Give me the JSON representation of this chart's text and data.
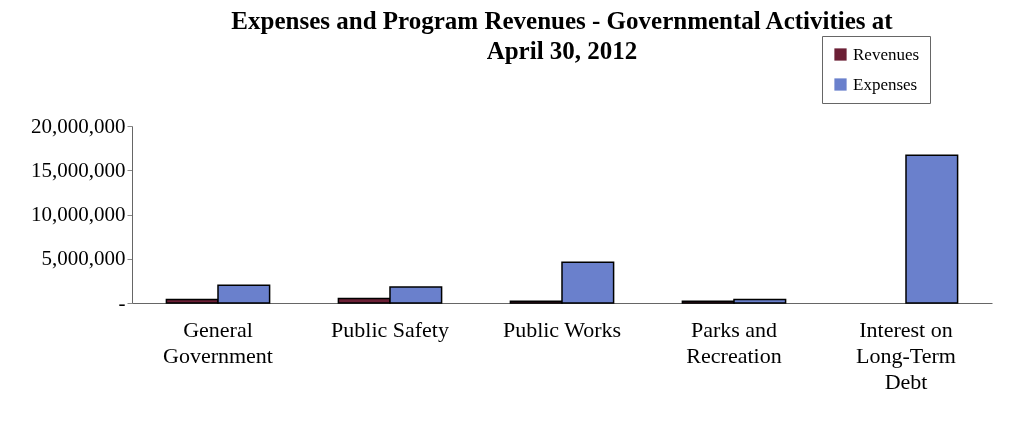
{
  "chart_data": {
    "type": "bar",
    "title": "Expenses and Program Revenues - Governmental Activities at April 30, 2012",
    "categories": [
      "General Government",
      "Public Safety",
      "Public Works",
      "Parks and Recreation",
      "Interest on Long-Term Debt"
    ],
    "series": [
      {
        "name": "Revenues",
        "color": "#6b1f35",
        "values": [
          400000,
          500000,
          200000,
          200000,
          0
        ]
      },
      {
        "name": "Expenses",
        "color": "#6a80cc",
        "values": [
          2000000,
          1800000,
          4600000,
          400000,
          16700000
        ]
      }
    ],
    "ylim": [
      0,
      20000000
    ],
    "yticks": [
      {
        "value": 0,
        "label": "-"
      },
      {
        "value": 5000000,
        "label": "5,000,000"
      },
      {
        "value": 10000000,
        "label": "10,000,000"
      },
      {
        "value": 15000000,
        "label": "15,000,000"
      },
      {
        "value": 20000000,
        "label": "20,000,000"
      }
    ],
    "grid": false,
    "legend": "top right"
  }
}
